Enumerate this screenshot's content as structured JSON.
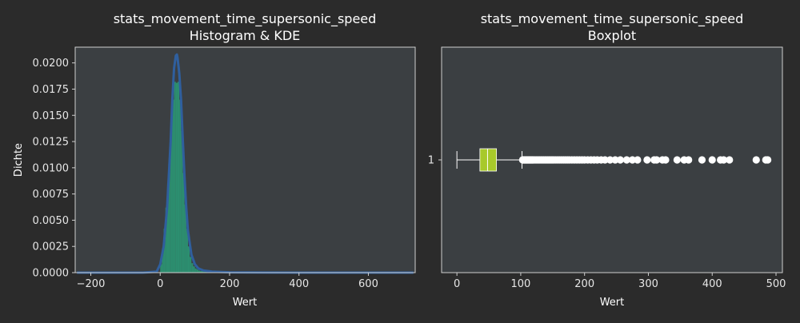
{
  "chart_data": [
    {
      "type": "histogram",
      "title_line1": "stats_movement_time_supersonic_speed",
      "title_line2": "Histogram & KDE",
      "xlabel": "Wert",
      "ylabel": "Dichte",
      "xlim": [
        -245,
        735
      ],
      "ylim": [
        0,
        0.0215
      ],
      "xticks": [
        -200,
        0,
        200,
        400,
        600
      ],
      "yticks": [
        0.0,
        0.0025,
        0.005,
        0.0075,
        0.01,
        0.0125,
        0.015,
        0.0175,
        0.02
      ],
      "ytick_labels": [
        "0.0000",
        "0.0025",
        "0.0050",
        "0.0075",
        "0.0100",
        "0.0125",
        "0.0150",
        "0.0175",
        "0.0200"
      ],
      "bins": [
        {
          "x0": 0,
          "x1": 5,
          "density": 0.0008
        },
        {
          "x0": 5,
          "x1": 10,
          "density": 0.0023
        },
        {
          "x0": 10,
          "x1": 15,
          "density": 0.0042
        },
        {
          "x0": 15,
          "x1": 20,
          "density": 0.0062
        },
        {
          "x0": 20,
          "x1": 25,
          "density": 0.0085
        },
        {
          "x0": 25,
          "x1": 30,
          "density": 0.0112
        },
        {
          "x0": 30,
          "x1": 35,
          "density": 0.0138
        },
        {
          "x0": 35,
          "x1": 40,
          "density": 0.0165
        },
        {
          "x0": 40,
          "x1": 45,
          "density": 0.0182
        },
        {
          "x0": 45,
          "x1": 50,
          "density": 0.0181
        },
        {
          "x0": 50,
          "x1": 55,
          "density": 0.0182
        },
        {
          "x0": 55,
          "x1": 60,
          "density": 0.0165
        },
        {
          "x0": 60,
          "x1": 65,
          "density": 0.0135
        },
        {
          "x0": 65,
          "x1": 70,
          "density": 0.0095
        },
        {
          "x0": 70,
          "x1": 75,
          "density": 0.0065
        },
        {
          "x0": 75,
          "x1": 80,
          "density": 0.0042
        },
        {
          "x0": 80,
          "x1": 85,
          "density": 0.0025
        },
        {
          "x0": 85,
          "x1": 90,
          "density": 0.0015
        },
        {
          "x0": 90,
          "x1": 95,
          "density": 0.0009
        },
        {
          "x0": 95,
          "x1": 100,
          "density": 0.0006
        },
        {
          "x0": 100,
          "x1": 105,
          "density": 0.0004
        },
        {
          "x0": 105,
          "x1": 110,
          "density": 0.0003
        },
        {
          "x0": 110,
          "x1": 115,
          "density": 0.0002
        },
        {
          "x0": 115,
          "x1": 125,
          "density": 0.00015
        },
        {
          "x0": 125,
          "x1": 150,
          "density": 8e-05
        }
      ],
      "kde": {
        "x": [
          -240,
          -50,
          -10,
          0,
          10,
          20,
          30,
          35,
          40,
          45,
          48,
          50,
          55,
          60,
          65,
          70,
          75,
          80,
          90,
          100,
          110,
          125,
          150,
          200,
          300,
          500,
          730
        ],
        "y": [
          0,
          0,
          0.0001,
          0.0008,
          0.0025,
          0.0062,
          0.0125,
          0.0165,
          0.0195,
          0.0207,
          0.0208,
          0.0205,
          0.019,
          0.0165,
          0.0128,
          0.0092,
          0.0062,
          0.004,
          0.0017,
          0.0008,
          0.0004,
          0.0002,
          0.0001,
          3e-05,
          1e-05,
          0,
          0
        ]
      },
      "colors": {
        "bars": "#2a9d78",
        "kde": "#2f5f9e",
        "panel": "#3b3f42"
      }
    },
    {
      "type": "boxplot",
      "title_line1": "stats_movement_time_supersonic_speed",
      "title_line2": "Boxplot",
      "xlabel": "Wert",
      "ylabel": "",
      "xlim": [
        -24,
        510
      ],
      "xticks": [
        0,
        100,
        200,
        300,
        400,
        500
      ],
      "category": "1",
      "whisker_low": 0,
      "q1": 36,
      "median": 48,
      "q3": 62,
      "whisker_high": 102,
      "outliers": [
        103,
        104,
        105,
        106,
        107,
        108,
        109,
        110,
        111,
        112,
        113,
        114,
        115,
        116,
        117,
        118,
        119,
        120,
        122,
        124,
        126,
        128,
        130,
        132,
        134,
        136,
        138,
        140,
        142,
        144,
        146,
        148,
        150,
        152,
        155,
        158,
        161,
        164,
        167,
        170,
        173,
        176,
        180,
        184,
        188,
        192,
        196,
        200,
        205,
        210,
        215,
        220,
        226,
        232,
        240,
        248,
        256,
        266,
        275,
        283,
        298,
        309,
        313,
        322,
        327,
        345,
        356,
        363,
        384,
        400,
        413,
        418,
        427,
        469,
        484,
        487
      ],
      "colors": {
        "box": "#a8c92a",
        "whisker": "#ffffff",
        "outlier": "#ffffff",
        "panel": "#3b3f42"
      }
    }
  ]
}
